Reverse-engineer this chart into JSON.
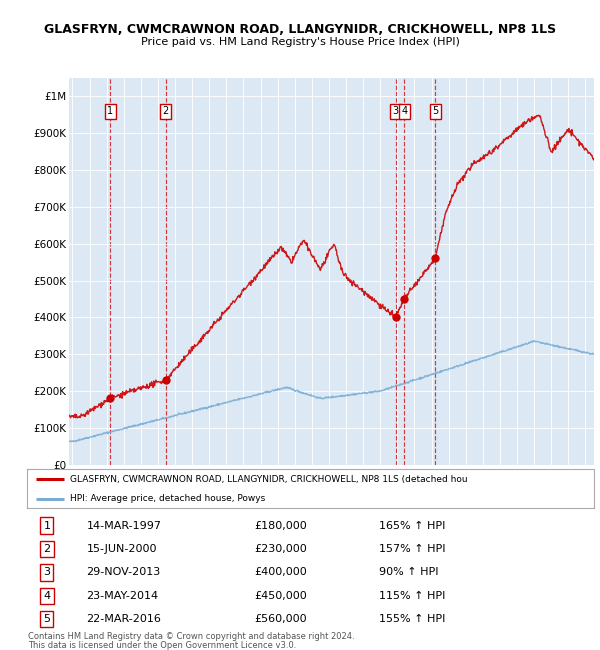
{
  "title": "GLASFRYN, CWMCRAWNON ROAD, LLANGYNIDR, CRICKHOWELL, NP8 1LS",
  "subtitle": "Price paid vs. HM Land Registry's House Price Index (HPI)",
  "bg_color": "#dce9f5",
  "ylim": [
    0,
    1050000
  ],
  "yticks": [
    0,
    100000,
    200000,
    300000,
    400000,
    500000,
    600000,
    700000,
    800000,
    900000,
    1000000
  ],
  "ytick_labels": [
    "£0",
    "£100K",
    "£200K",
    "£300K",
    "£400K",
    "£500K",
    "£600K",
    "£700K",
    "£800K",
    "£900K",
    "£1M"
  ],
  "xlim_start": 1994.8,
  "xlim_end": 2025.5,
  "sales": [
    {
      "num": 1,
      "date": "14-MAR-1997",
      "year": 1997.2,
      "price": 180000,
      "pct": "165%",
      "dir": "↑"
    },
    {
      "num": 2,
      "date": "15-JUN-2000",
      "year": 2000.45,
      "price": 230000,
      "pct": "157%",
      "dir": "↑"
    },
    {
      "num": 3,
      "date": "29-NOV-2013",
      "year": 2013.9,
      "price": 400000,
      "pct": "90%",
      "dir": "↑"
    },
    {
      "num": 4,
      "date": "23-MAY-2014",
      "year": 2014.4,
      "price": 450000,
      "pct": "115%",
      "dir": "↑"
    },
    {
      "num": 5,
      "date": "22-MAR-2016",
      "year": 2016.22,
      "price": 560000,
      "pct": "155%",
      "dir": "↑"
    }
  ],
  "red_color": "#cc0000",
  "blue_color": "#7aadd4",
  "legend_red_label": "GLASFRYN, CWMCRAWNON ROAD, LLANGYNIDR, CRICKHOWELL, NP8 1LS (detached hou",
  "legend_blue_label": "HPI: Average price, detached house, Powys",
  "footer1": "Contains HM Land Registry data © Crown copyright and database right 2024.",
  "footer2": "This data is licensed under the Open Government Licence v3.0."
}
